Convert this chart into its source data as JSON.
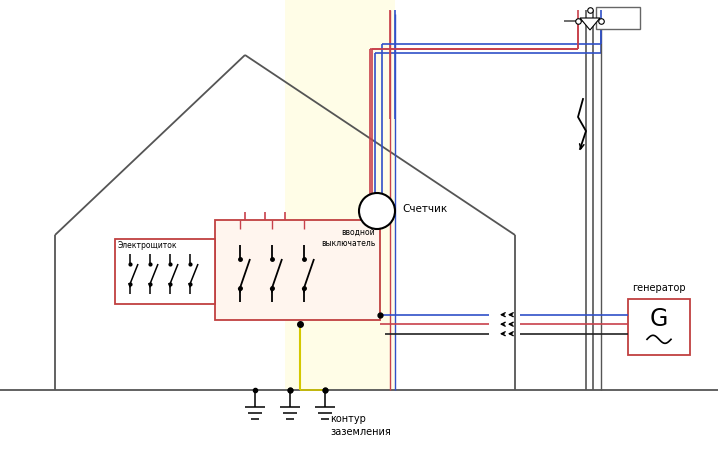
{
  "bg_color": "#ffffff",
  "house_color": "#555555",
  "wire_red": "#c8414b",
  "wire_blue": "#3050c8",
  "wire_yellow": "#d4c800",
  "wire_black": "#222222",
  "box_red": "#c04040",
  "generator_box_color": "#c04040",
  "pole_color": "#555555",
  "label_счетчик": "Счетчик",
  "label_генератор": "генератор",
  "label_электрощиток": "Электрощиток",
  "label_вводной": "вводной\nвыключатель",
  "label_контур": "контур\nзаземления",
  "figsize": [
    7.18,
    4.69
  ],
  "dpi": 100
}
